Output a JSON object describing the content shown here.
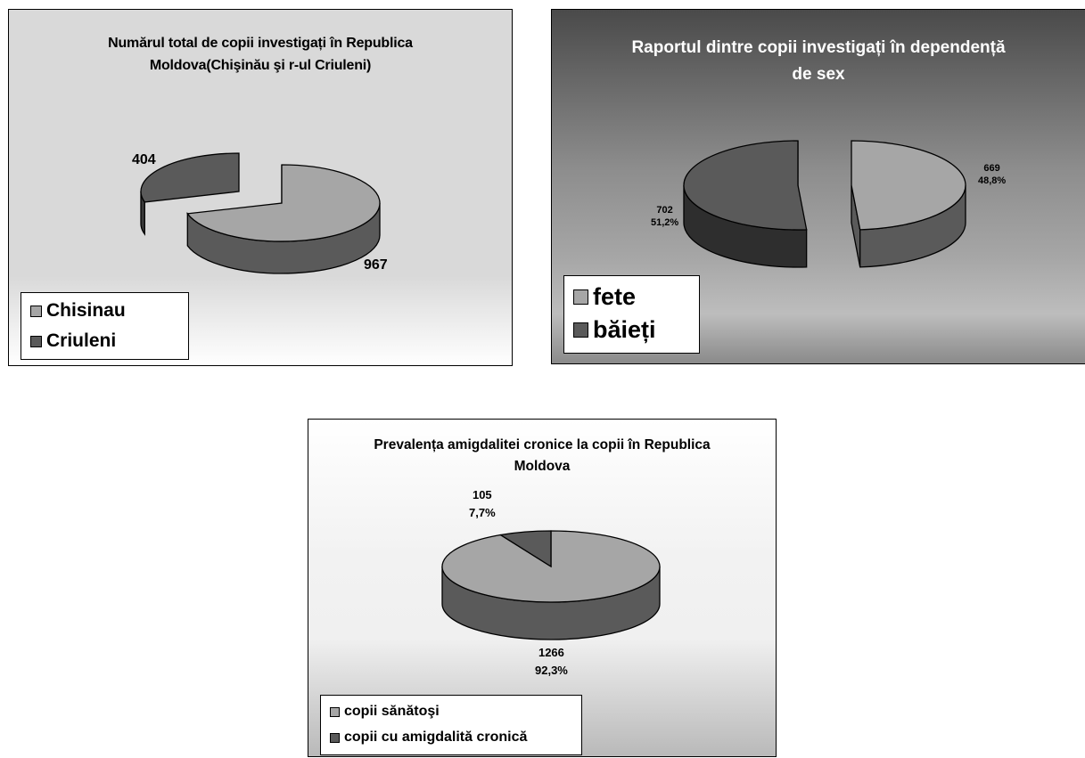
{
  "colors": {
    "light": "#a6a6a6",
    "light_side": "#8a8a8a",
    "dark": "#5a5a5a",
    "darker": "#3a3a3a",
    "edge": "#000000"
  },
  "chart_data": [
    {
      "type": "pie",
      "variant": "3d-exploded",
      "title_lines": [
        "Numărul total de copii investigați în Republica",
        "Moldova(Chişinău şi r-ul Criuleni)"
      ],
      "slices": [
        {
          "name": "Chisinau",
          "value": 967,
          "label": "967"
        },
        {
          "name": "Criuleni",
          "value": 404,
          "label": "404"
        }
      ],
      "legend": {
        "position": "bottom-left",
        "entries": [
          "Chisinau",
          "Criuleni"
        ]
      }
    },
    {
      "type": "pie",
      "variant": "3d-exploded",
      "title_lines": [
        "Raportul dintre copii investigați în dependență",
        "de sex"
      ],
      "slices": [
        {
          "name": "fete",
          "value": 669,
          "percent": "48,8%",
          "label_value": "669",
          "label_percent": "48,8%"
        },
        {
          "name": "băieți",
          "value": 702,
          "percent": "51,2%",
          "label_value": "702",
          "label_percent": "51,2%"
        }
      ],
      "legend": {
        "position": "bottom-left",
        "entries": [
          "fete",
          "băieți"
        ]
      }
    },
    {
      "type": "pie",
      "variant": "3d",
      "title_lines": [
        "Prevalența amigdalitei cronice la copii în Republica",
        "Moldova"
      ],
      "slices": [
        {
          "name": "copii sănătoşi",
          "value": 1266,
          "percent": "92,3%",
          "label_value": "1266",
          "label_percent": "92,3%"
        },
        {
          "name": "copii cu amigdalită cronică",
          "value": 105,
          "percent": "7,7%",
          "label_value": "105",
          "label_percent": "7,7%"
        }
      ],
      "legend": {
        "position": "bottom-left",
        "entries": [
          "copii sănătoşi",
          "copii cu amigdalită cronică"
        ]
      }
    }
  ]
}
